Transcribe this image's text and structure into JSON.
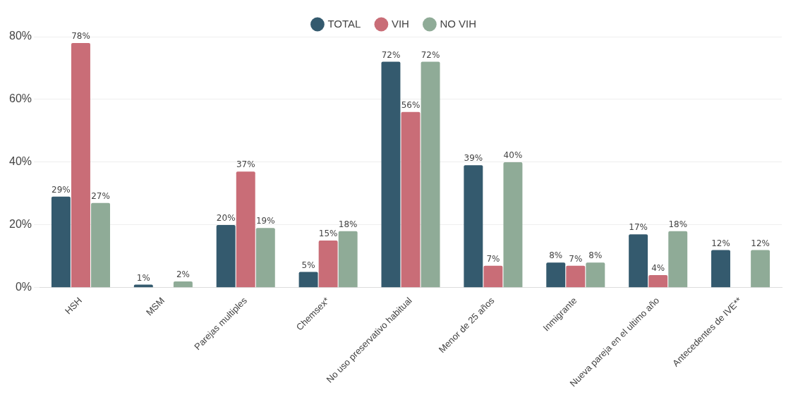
{
  "chart_data": {
    "type": "bar",
    "categories": [
      "HSH",
      "MSM",
      "Parejas multiples",
      "Chemsex*",
      "No uso preservativo habitual",
      "Menor de 25 años",
      "Inmigrante",
      "Nueva pareja en el ultimo año",
      "Antecedentes de IVE**"
    ],
    "series": [
      {
        "name": "TOTAL",
        "color": "#345a6e",
        "values": [
          29,
          1,
          20,
          5,
          72,
          39,
          8,
          17,
          12
        ],
        "value_labels": [
          "29%",
          "1%",
          "20%",
          "5%",
          "72%",
          "39%",
          "8%",
          "17%",
          "12%"
        ]
      },
      {
        "name": "VIH",
        "color": "#c96d77",
        "values": [
          78,
          null,
          37,
          15,
          56,
          7,
          7,
          4,
          null
        ],
        "value_labels": [
          "78%",
          null,
          "37%",
          "15%",
          "56%",
          "7%",
          "7%",
          "4%",
          null
        ]
      },
      {
        "name": "NO VIH",
        "color": "#8fab97",
        "values": [
          27,
          2,
          19,
          18,
          72,
          40,
          8,
          18,
          12
        ],
        "value_labels": [
          "27%",
          "2%",
          "19%",
          "18%",
          "72%",
          "40%",
          "8%",
          "18%",
          "12%"
        ]
      }
    ],
    "ylim": [
      0,
      80
    ],
    "yticks": [
      {
        "value": 0,
        "label": "0%"
      },
      {
        "value": 20,
        "label": "20%"
      },
      {
        "value": 40,
        "label": "40%"
      },
      {
        "value": 60,
        "label": "60%"
      },
      {
        "value": 80,
        "label": "80%"
      }
    ],
    "grid": "y",
    "legend": "top"
  }
}
